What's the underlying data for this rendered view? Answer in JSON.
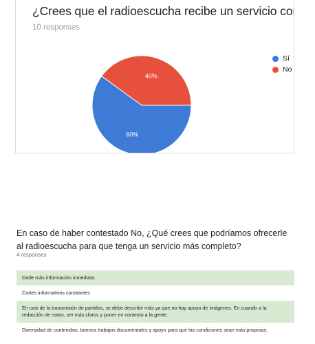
{
  "question1": {
    "title": "¿Crees que el radioescucha recibe un servicio completo?",
    "response_count": "10 responses"
  },
  "chart_data": {
    "type": "pie",
    "title": "",
    "categories": [
      "Sí",
      "No"
    ],
    "values": [
      60,
      40
    ],
    "value_labels": [
      "60%",
      "40%"
    ],
    "colors": [
      "#3d7bd6",
      "#e8503e"
    ],
    "legend_placement": "right"
  },
  "question2": {
    "title": "En caso de haber contestado No, ¿Qué crees que podríamos ofrecerle al radioescucha para que tenga un servicio más completo?",
    "response_count": "4 responses",
    "responses": [
      "Darle más información inmediata.",
      "Cortes informativos constantes",
      "En casi de la transmisión de partidos, se debe describir más ya que no hay apoyo de imágenes. En cuando a la redacción de notas, ser más claros y poner en contexto a la gente.",
      "Diversidad de contenidos, buenos trabajos documentales y apoyo para que las condiciones sean más propicias."
    ],
    "row_colors": [
      "#d9ead3",
      "#ffffff"
    ]
  }
}
